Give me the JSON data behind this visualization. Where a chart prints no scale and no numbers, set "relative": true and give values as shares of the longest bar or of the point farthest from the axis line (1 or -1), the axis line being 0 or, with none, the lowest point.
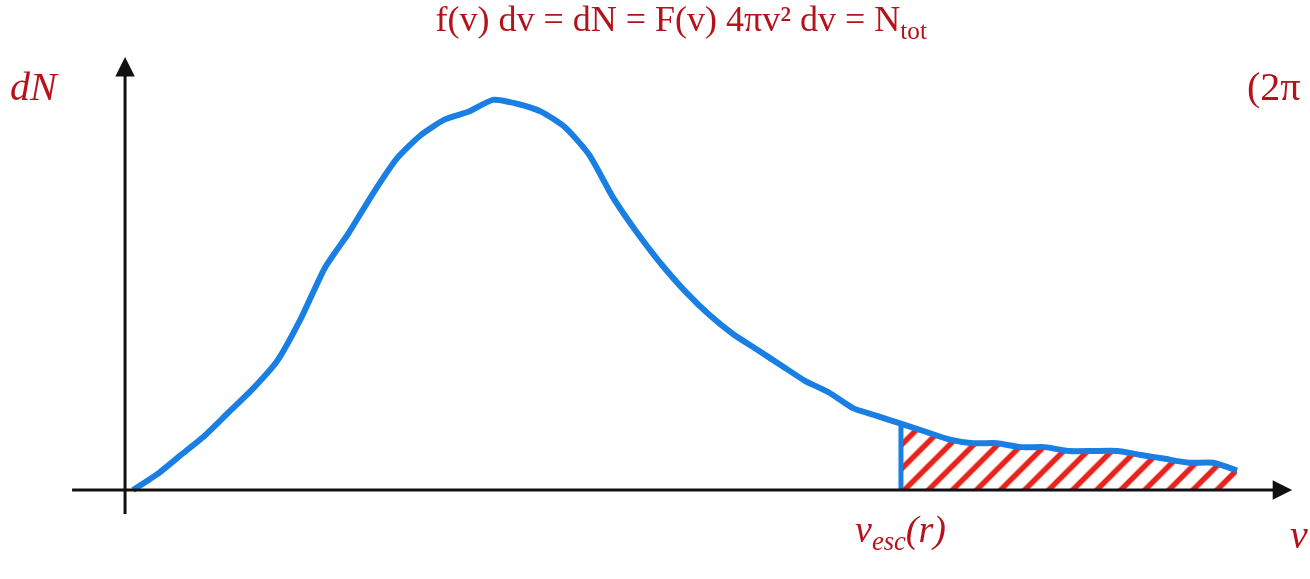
{
  "chart_data": {
    "type": "line",
    "title": "f(v) dv = dN = F(v) 4πv² dv = N$_{tot}$",
    "xlabel": "v",
    "ylabel": "dN",
    "annotations": [
      "v$_{esc}$(r)",
      "(2π"
    ],
    "categories": [
      null,
      null,
      null,
      null,
      null,
      null,
      null,
      null,
      null,
      null,
      null,
      null,
      null,
      null,
      null,
      null,
      null,
      null,
      null,
      null,
      null,
      null,
      null,
      null,
      null,
      null,
      null,
      null,
      null,
      null,
      null,
      null,
      null,
      null,
      null,
      null,
      null,
      null,
      null,
      null,
      null,
      null,
      null,
      null,
      null,
      null,
      null
    ],
    "relative": true,
    "marker": "none",
    "series": [
      {
        "color": "#1a7fe3",
        "values": [
          0.0,
          0.04,
          0.09,
          0.14,
          0.2,
          0.26,
          0.33,
          0.44,
          0.57,
          0.66,
          0.76,
          0.85,
          0.91,
          0.95,
          0.97,
          1.0,
          0.99,
          0.97,
          0.93,
          0.86,
          0.75,
          0.66,
          0.58,
          0.51,
          0.45,
          0.4,
          0.36,
          0.32,
          0.28,
          0.25,
          0.21,
          0.19,
          0.17,
          0.15,
          0.13,
          0.12,
          0.12,
          0.11,
          0.11,
          0.1,
          0.1,
          0.1,
          0.09,
          0.08,
          0.07,
          0.07,
          0.05
        ]
      },
      {
        "type": "area",
        "color": "#e8231c",
        "values": [
          null,
          null,
          null,
          null,
          null,
          null,
          null,
          null,
          null,
          null,
          null,
          null,
          null,
          null,
          null,
          null,
          null,
          null,
          null,
          null,
          null,
          null,
          null,
          null,
          null,
          null,
          null,
          null,
          null,
          null,
          null,
          null,
          0.17,
          0.15,
          0.13,
          0.12,
          0.12,
          0.11,
          0.11,
          0.1,
          0.1,
          0.1,
          0.09,
          0.08,
          0.07,
          0.07,
          0.05
        ]
      }
    ]
  }
}
